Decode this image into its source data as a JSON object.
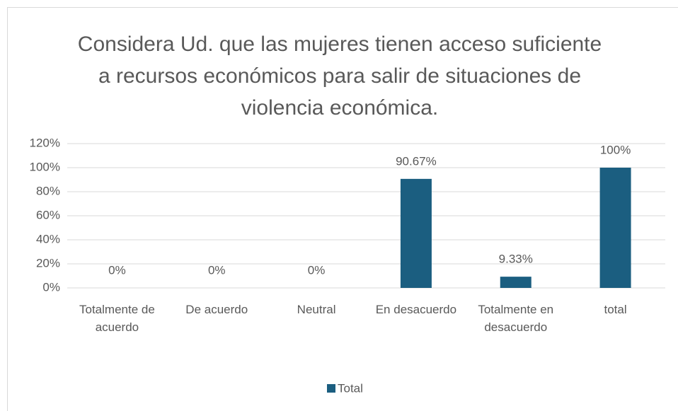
{
  "chart_data": {
    "type": "bar",
    "title": "Considera Ud.  que las mujeres tienen acceso suficiente a recursos económicos para salir de situaciones de violencia económica.",
    "categories": [
      "Totalmente de acuerdo",
      "De acuerdo",
      "Neutral",
      "En desacuerdo",
      "Totalmente en desacuerdo",
      "total"
    ],
    "series": [
      {
        "name": "Total",
        "color": "#1b5e80",
        "values": [
          0,
          0,
          0,
          90.67,
          9.33,
          100
        ],
        "value_labels": [
          "0%",
          "0%",
          "0%",
          "90.67%",
          "9.33%",
          "100%"
        ]
      }
    ],
    "ylim": [
      0,
      120
    ],
    "yticks": [
      {
        "value": 0,
        "label": "0%"
      },
      {
        "value": 20,
        "label": "20%"
      },
      {
        "value": 40,
        "label": "40%"
      },
      {
        "value": 60,
        "label": "60%"
      },
      {
        "value": 80,
        "label": "80%"
      },
      {
        "value": 100,
        "label": "100%"
      },
      {
        "value": 120,
        "label": "120%"
      }
    ],
    "grid": true,
    "legend": "bottom"
  }
}
